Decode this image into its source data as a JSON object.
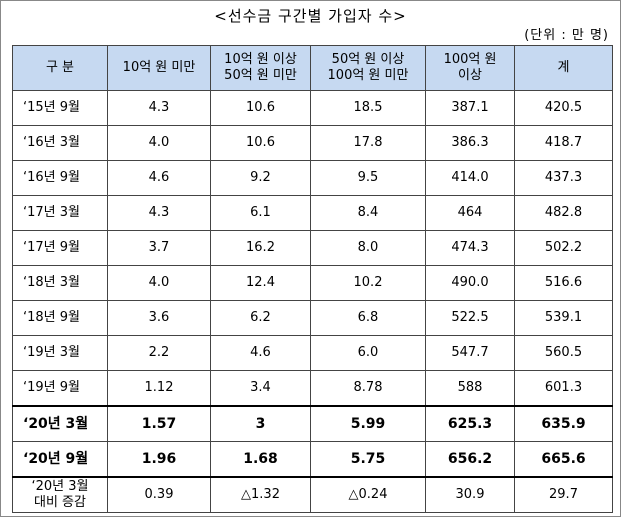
{
  "title": "<선수금 구간별 가입자 수>",
  "unit": "(단위 : 만 명)",
  "table": {
    "header": [
      [
        "구 분"
      ],
      [
        "10억 원 미만"
      ],
      [
        "10억 원 이상",
        "50억 원 미만"
      ],
      [
        "50억 원 이상",
        "100억 원 미만"
      ],
      [
        "100억 원",
        "이상"
      ],
      [
        "계"
      ]
    ],
    "rows": [
      [
        [
          "‘15년  9월"
        ],
        [
          "4.3"
        ],
        [
          "10.6"
        ],
        [
          "18.5"
        ],
        [
          "387.1"
        ],
        [
          "420.5"
        ]
      ],
      [
        [
          "‘16년  3월"
        ],
        [
          "4.0"
        ],
        [
          "10.6"
        ],
        [
          "17.8"
        ],
        [
          "386.3"
        ],
        [
          "418.7"
        ]
      ],
      [
        [
          "‘16년  9월"
        ],
        [
          "4.6"
        ],
        [
          "9.2"
        ],
        [
          "9.5"
        ],
        [
          "414.0"
        ],
        [
          "437.3"
        ]
      ],
      [
        [
          "‘17년  3월"
        ],
        [
          "4.3"
        ],
        [
          "6.1"
        ],
        [
          "8.4"
        ],
        [
          "464"
        ],
        [
          "482.8"
        ]
      ],
      [
        [
          "‘17년  9월"
        ],
        [
          "3.7"
        ],
        [
          "16.2"
        ],
        [
          "8.0"
        ],
        [
          "474.3"
        ],
        [
          "502.2"
        ]
      ],
      [
        [
          "‘18년  3월"
        ],
        [
          "4.0"
        ],
        [
          "12.4"
        ],
        [
          "10.2"
        ],
        [
          "490.0"
        ],
        [
          "516.6"
        ]
      ],
      [
        [
          "‘18년  9월"
        ],
        [
          "3.6"
        ],
        [
          "6.2"
        ],
        [
          "6.8"
        ],
        [
          "522.5"
        ],
        [
          "539.1"
        ]
      ],
      [
        [
          "‘19년  3월"
        ],
        [
          "2.2"
        ],
        [
          "4.6"
        ],
        [
          "6.0"
        ],
        [
          "547.7"
        ],
        [
          "560.5"
        ]
      ],
      [
        [
          "‘19년  9월"
        ],
        [
          "1.12"
        ],
        [
          "3.4"
        ],
        [
          "8.78"
        ],
        [
          "588"
        ],
        [
          "601.3"
        ]
      ],
      [
        [
          "‘20년  3월"
        ],
        [
          "1.57"
        ],
        [
          "3"
        ],
        [
          "5.99"
        ],
        [
          "625.3"
        ],
        [
          "635.9"
        ]
      ],
      [
        [
          "‘20년  9월"
        ],
        [
          "1.96"
        ],
        [
          "1.68"
        ],
        [
          "5.75"
        ],
        [
          "656.2"
        ],
        [
          "665.6"
        ]
      ],
      [
        [
          "‘20년 3월",
          "대비 증감"
        ],
        [
          "0.39"
        ],
        [
          "△1.32"
        ],
        [
          "△0.24"
        ],
        [
          "30.9"
        ],
        [
          "29.7"
        ]
      ]
    ]
  }
}
